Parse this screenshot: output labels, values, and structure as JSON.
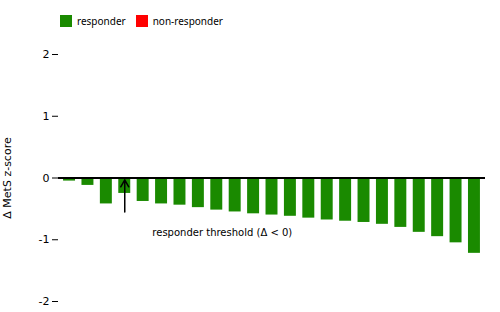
{
  "chart_data": {
    "type": "bar",
    "categories": [
      null,
      null,
      null,
      null,
      null,
      null,
      null,
      null,
      null,
      null,
      null,
      null,
      null,
      null,
      null,
      null,
      null,
      null,
      null,
      null,
      null,
      null,
      null
    ],
    "series": [
      {
        "name": "responder",
        "color": "#1a8a00",
        "values": [
          -0.05,
          -0.12,
          -0.42,
          -0.25,
          -0.38,
          -0.42,
          -0.44,
          -0.48,
          -0.52,
          -0.55,
          -0.58,
          -0.6,
          -0.62,
          -0.65,
          -0.68,
          -0.7,
          -0.72,
          -0.75,
          -0.8,
          -0.88,
          -0.95,
          -1.05,
          -1.22
        ]
      },
      {
        "name": "non-responder",
        "color": "#ff0000",
        "values": [
          null,
          null,
          null,
          null,
          null,
          null,
          null,
          null,
          null,
          null,
          null,
          null,
          null,
          null,
          null,
          null,
          null,
          null,
          null,
          null,
          null,
          null,
          null
        ]
      }
    ],
    "ylabel": "Δ MetS z-score",
    "ylim": [
      -2,
      2
    ],
    "yticks": [
      -2,
      -1,
      0,
      1,
      2
    ],
    "legend": "upper left",
    "tick_labels": "y",
    "annotations": [
      {
        "text": "responder threshold (Δ < 0)",
        "x": 4.5,
        "y": -0.82,
        "arrow": {
          "x": 3,
          "y_from": -0.55,
          "y_to": -0.03
        }
      }
    ]
  }
}
